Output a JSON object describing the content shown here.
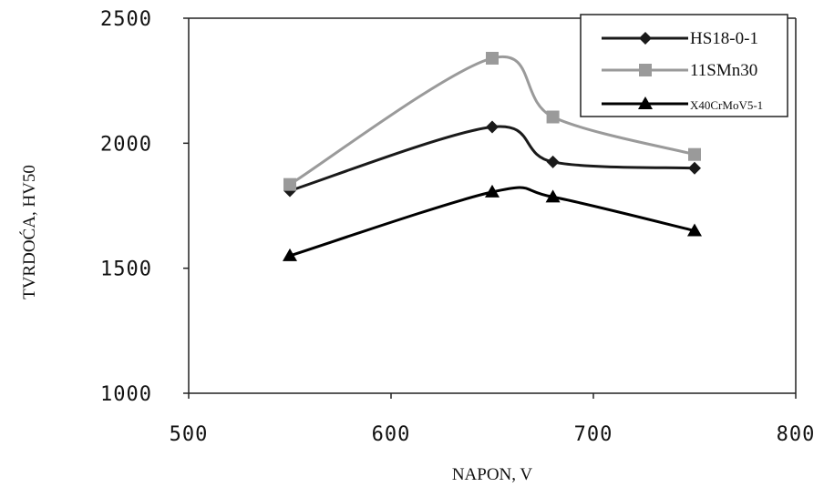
{
  "chart_data": {
    "type": "line",
    "xlabel": "NAPON, V",
    "ylabel": "TVRDOĆA, HV50",
    "xlim": [
      500,
      800
    ],
    "ylim": [
      1000,
      2500
    ],
    "xticks": [
      "500",
      "600",
      "700",
      "800"
    ],
    "yticks": [
      "1000",
      "1500",
      "2000",
      "2500"
    ],
    "grid": false,
    "legend_position": "top-right",
    "x": [
      550,
      650,
      680,
      750
    ],
    "series": [
      {
        "name": "HS18-0-1",
        "values": [
          1810,
          2065,
          1925,
          1900
        ],
        "marker": "diamond",
        "color": "#1a1a1a"
      },
      {
        "name": "11SMn30",
        "values": [
          1835,
          2340,
          2105,
          1955
        ],
        "marker": "square",
        "color": "#9a9a9a"
      },
      {
        "name": "X40CrMoV5-1",
        "values": [
          1550,
          1805,
          1785,
          1650
        ],
        "marker": "triangle",
        "color": "#000000"
      }
    ]
  }
}
